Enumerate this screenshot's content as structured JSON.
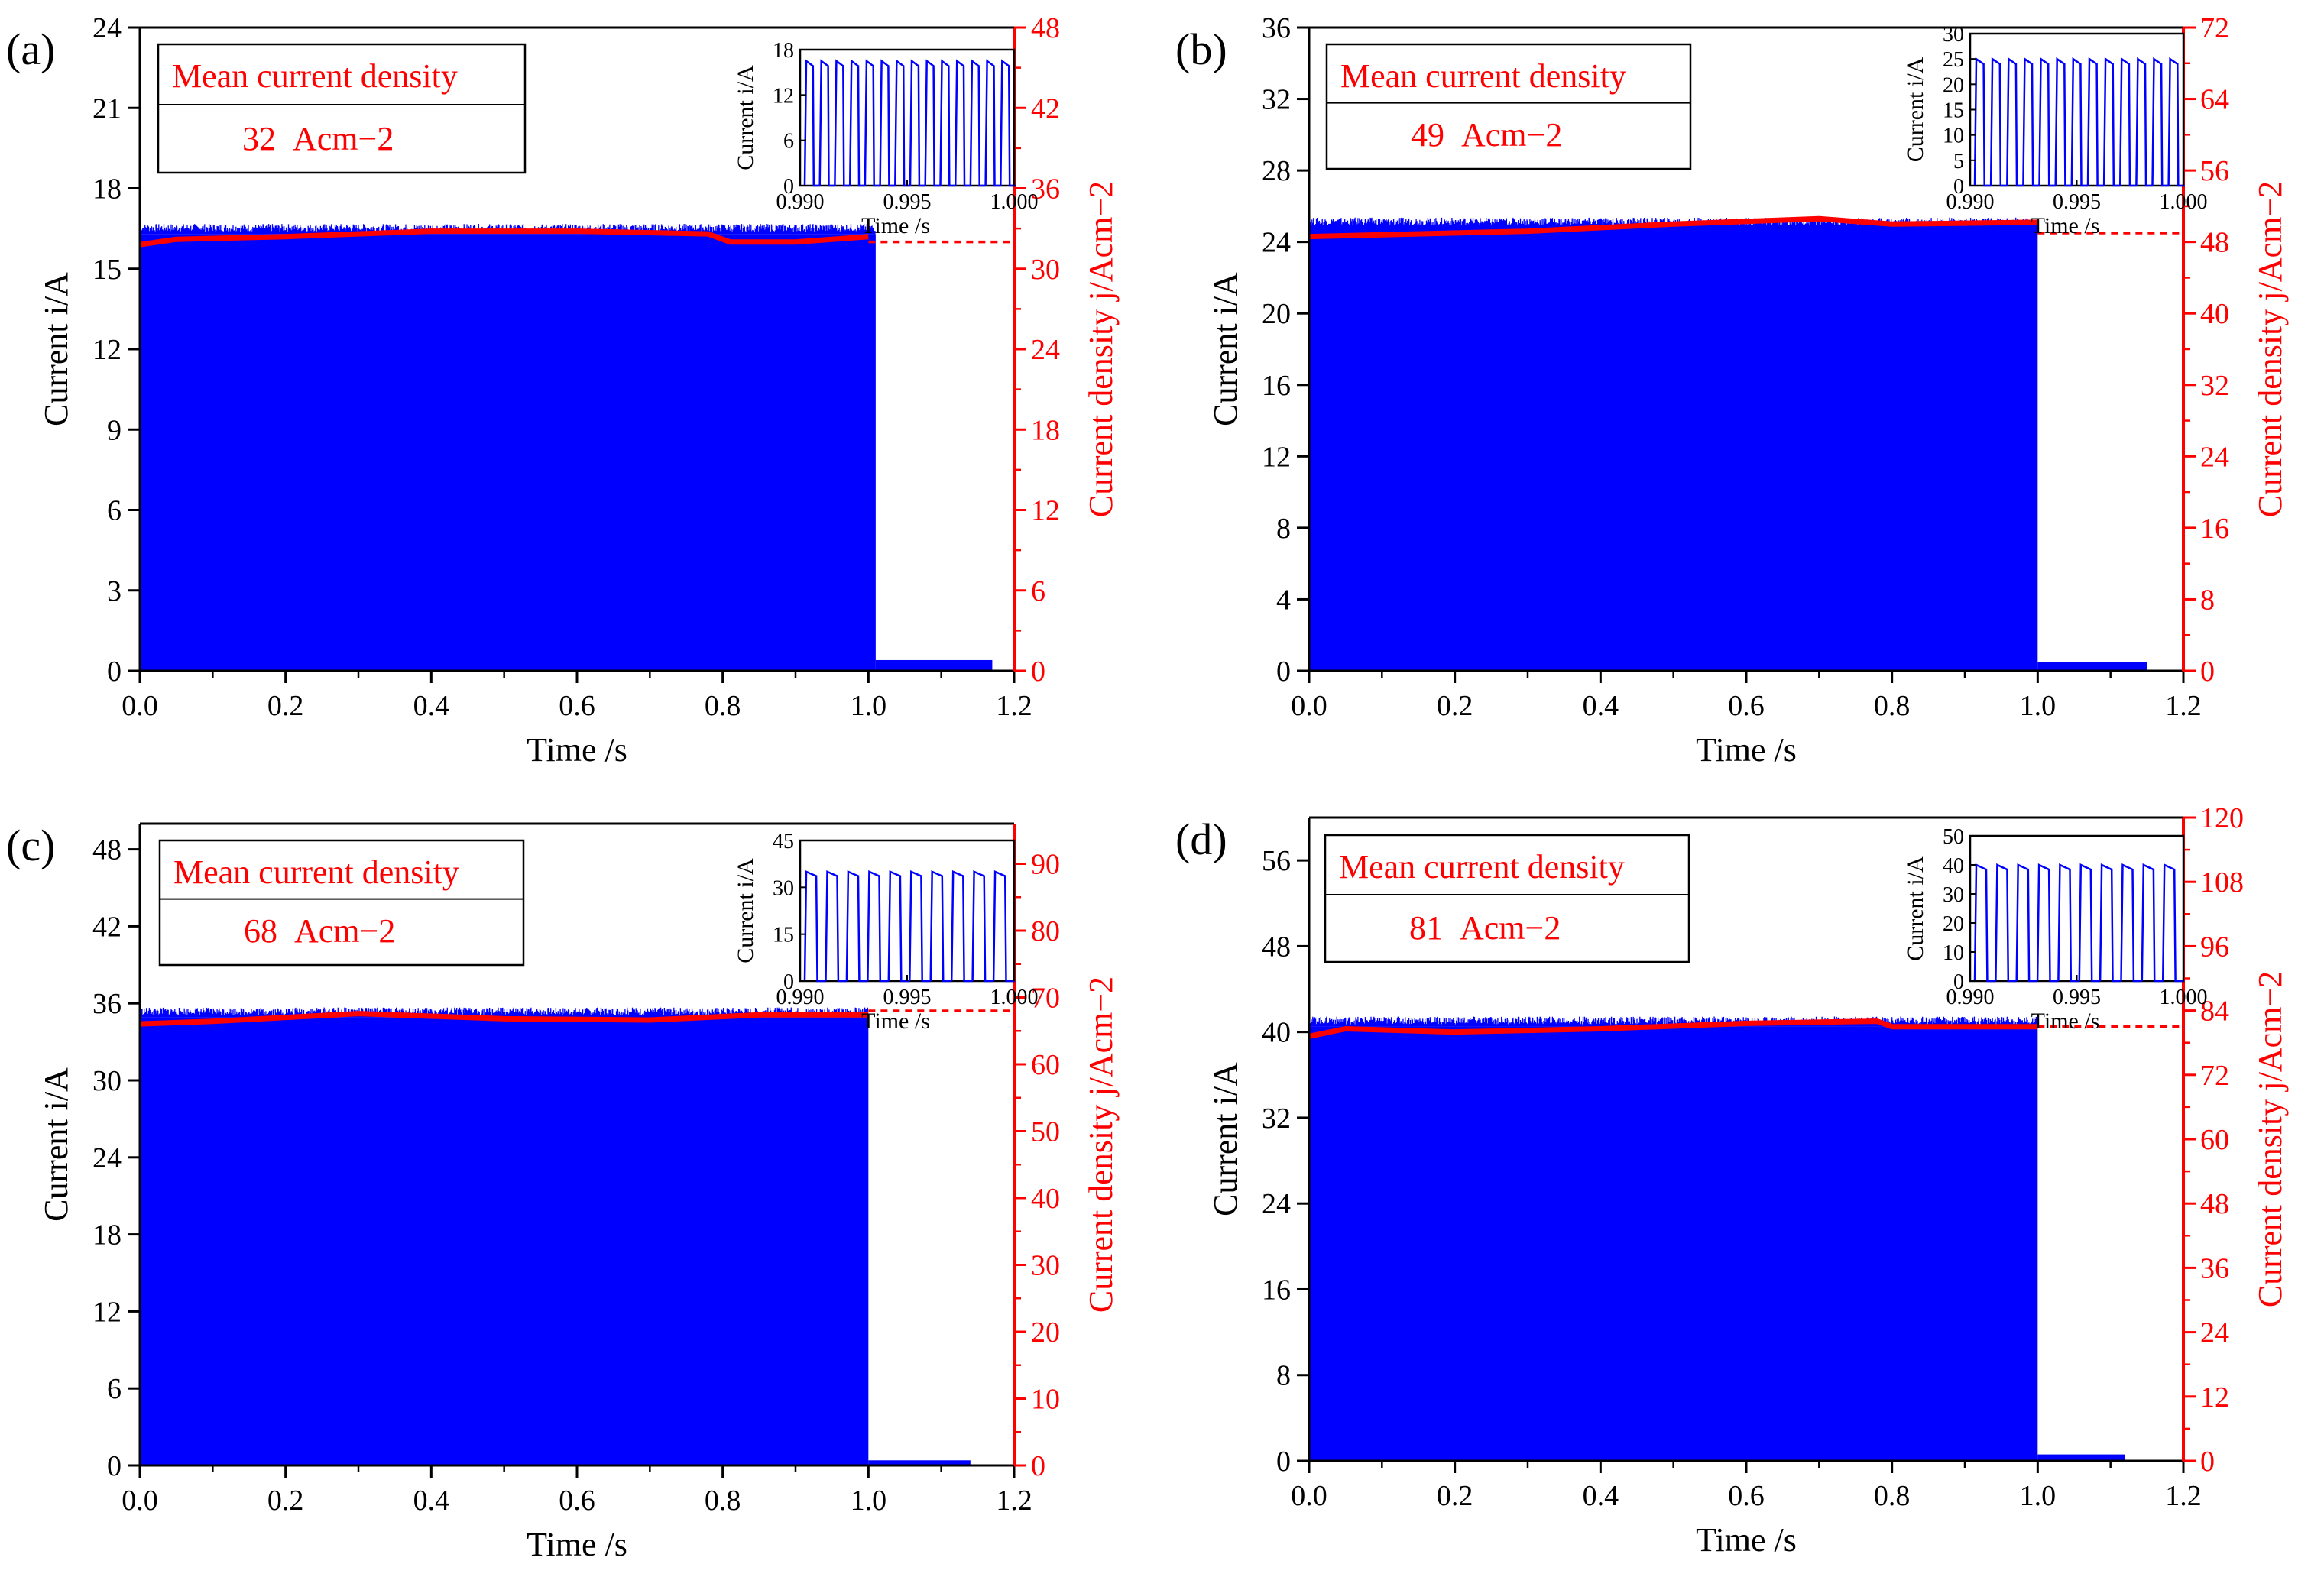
{
  "colors": {
    "left_axis": "#000000",
    "right_axis": "#ff0000",
    "signal": "#0000ff",
    "mean": "#ff0000"
  },
  "x_label": "Time /s",
  "y_label": "Current i/A",
  "y2_label": "Current density j/Acm−2",
  "legend_title": "Mean current density",
  "inset_x_label": "Time /s",
  "inset_y_label": "Current i/A",
  "chart_data": [
    {
      "type": "bar",
      "id": "a",
      "letter": "(a)",
      "xlim": [
        0,
        1.2
      ],
      "xticks": [
        0.0,
        0.2,
        0.4,
        0.6,
        0.8,
        1.0,
        1.2
      ],
      "ylim": [
        0,
        24
      ],
      "yticks": [
        0,
        3,
        6,
        9,
        12,
        15,
        18,
        21,
        24
      ],
      "y2lim": [
        0,
        48
      ],
      "y2ticks": [
        0,
        6,
        12,
        18,
        24,
        30,
        36,
        42,
        48
      ],
      "pulse_level": 16.3,
      "pulse_end": 1.01,
      "tail_level": 0.4,
      "tail_end": 1.17,
      "mean_current": [
        [
          0.0,
          15.9
        ],
        [
          0.05,
          16.1
        ],
        [
          0.2,
          16.2
        ],
        [
          0.4,
          16.4
        ],
        [
          0.6,
          16.4
        ],
        [
          0.78,
          16.3
        ],
        [
          0.81,
          16.0
        ],
        [
          0.9,
          16.0
        ],
        [
          1.0,
          16.2
        ]
      ],
      "mean_density": 32,
      "legend_value": "32",
      "legend_unit": "Acm−2",
      "inset": {
        "xlim": [
          0.99,
          1.0
        ],
        "xticks": [
          "0.990",
          "0.995",
          "1.000"
        ],
        "ylim": [
          0,
          18
        ],
        "yticks": [
          0,
          6,
          12,
          18
        ],
        "peak": 16.5,
        "pulses": 14
      }
    },
    {
      "type": "bar",
      "id": "b",
      "letter": "(b)",
      "xlim": [
        0,
        1.2
      ],
      "xticks": [
        0.0,
        0.2,
        0.4,
        0.6,
        0.8,
        1.0,
        1.2
      ],
      "ylim": [
        0,
        36
      ],
      "yticks": [
        0,
        4,
        8,
        12,
        16,
        20,
        24,
        28,
        32,
        36
      ],
      "y2lim": [
        0,
        72
      ],
      "y2ticks": [
        0,
        8,
        16,
        24,
        32,
        40,
        48,
        56,
        64,
        72
      ],
      "pulse_level": 24.8,
      "pulse_end": 1.0,
      "tail_level": 0.5,
      "tail_end": 1.15,
      "mean_current": [
        [
          0.0,
          24.3
        ],
        [
          0.1,
          24.4
        ],
        [
          0.3,
          24.6
        ],
        [
          0.5,
          25.0
        ],
        [
          0.7,
          25.3
        ],
        [
          0.8,
          25.0
        ],
        [
          1.0,
          25.1
        ]
      ],
      "mean_density": 49,
      "legend_value": "49",
      "legend_unit": "Acm−2",
      "inset": {
        "xlim": [
          0.99,
          1.0
        ],
        "xticks": [
          "0.990",
          "0.995",
          "1.000"
        ],
        "ylim": [
          0,
          30
        ],
        "yticks": [
          0,
          5,
          10,
          15,
          20,
          25,
          30
        ],
        "peak": 25,
        "pulses": 13
      }
    },
    {
      "type": "bar",
      "id": "c",
      "letter": "(c)",
      "xlim": [
        0,
        1.2
      ],
      "xticks": [
        0.0,
        0.2,
        0.4,
        0.6,
        0.8,
        1.0,
        1.2
      ],
      "ylim": [
        0,
        50
      ],
      "yticks": [
        0,
        6,
        12,
        18,
        24,
        30,
        36,
        42,
        48
      ],
      "y2lim": [
        0,
        96
      ],
      "y2ticks": [
        0,
        10,
        20,
        30,
        40,
        50,
        60,
        70,
        80,
        90
      ],
      "pulse_level": 34.9,
      "pulse_end": 1.0,
      "tail_level": 0.4,
      "tail_end": 1.14,
      "mean_current": [
        [
          0.0,
          34.4
        ],
        [
          0.1,
          34.6
        ],
        [
          0.3,
          35.2
        ],
        [
          0.5,
          34.8
        ],
        [
          0.7,
          34.7
        ],
        [
          0.85,
          35.1
        ],
        [
          1.0,
          35.1
        ]
      ],
      "mean_density": 68,
      "legend_value": "68",
      "legend_unit": "Acm−2",
      "inset": {
        "xlim": [
          0.99,
          1.0
        ],
        "xticks": [
          "0.990",
          "0.995",
          "1.000"
        ],
        "ylim": [
          0,
          45
        ],
        "yticks": [
          0,
          15,
          30,
          45
        ],
        "peak": 35,
        "pulses": 10
      }
    },
    {
      "type": "bar",
      "id": "d",
      "letter": "(d)",
      "xlim": [
        0,
        1.2
      ],
      "xticks": [
        0.0,
        0.2,
        0.4,
        0.6,
        0.8,
        1.0,
        1.2
      ],
      "ylim": [
        0,
        60
      ],
      "yticks": [
        0,
        8,
        16,
        24,
        32,
        40,
        48,
        56
      ],
      "y2lim": [
        0,
        120
      ],
      "y2ticks": [
        0,
        12,
        24,
        36,
        48,
        60,
        72,
        84,
        96,
        108,
        120
      ],
      "pulse_level": 40.5,
      "pulse_end": 1.0,
      "tail_level": 0.6,
      "tail_end": 1.12,
      "mean_current": [
        [
          0.0,
          39.6
        ],
        [
          0.05,
          40.3
        ],
        [
          0.2,
          40.0
        ],
        [
          0.4,
          40.3
        ],
        [
          0.6,
          40.8
        ],
        [
          0.78,
          41.0
        ],
        [
          0.8,
          40.5
        ],
        [
          1.0,
          40.5
        ]
      ],
      "mean_density": 81,
      "legend_value": "81",
      "legend_unit": "Acm−2",
      "inset": {
        "xlim": [
          0.99,
          1.0
        ],
        "xticks": [
          "0.990",
          "0.995",
          "1.000"
        ],
        "ylim": [
          0,
          50
        ],
        "yticks": [
          0,
          10,
          20,
          30,
          40,
          50
        ],
        "peak": 40,
        "pulses": 10
      }
    }
  ]
}
